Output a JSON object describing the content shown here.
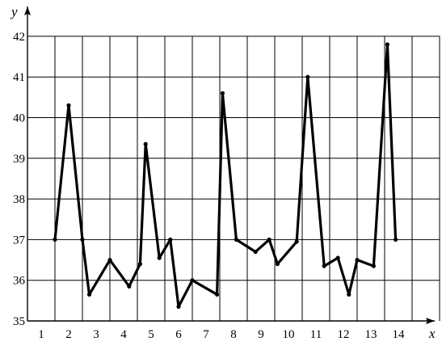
{
  "chart_data": {
    "type": "line",
    "title": "",
    "xlabel": "x",
    "ylabel": "y",
    "xlim": [
      0,
      15
    ],
    "ylim": [
      35,
      42
    ],
    "grid": true,
    "x_ticks": [
      "1",
      "2",
      "3",
      "4",
      "5",
      "6",
      "7",
      "8",
      "9",
      "10",
      "11",
      "12",
      "13",
      "14"
    ],
    "y_ticks": [
      "35",
      "36",
      "37",
      "38",
      "39",
      "40",
      "41",
      "42"
    ],
    "series": [
      {
        "color": "#000000",
        "x": [
          1,
          1.5,
          2,
          2.25,
          3,
          3.7,
          4.1,
          4.3,
          4.8,
          5.2,
          5.5,
          6,
          6.9,
          7.1,
          7.6,
          8.3,
          8.8,
          9.1,
          9.8,
          10.2,
          10.8,
          11.3,
          11.7,
          12,
          12.6,
          13.1,
          13.4
        ],
        "y": [
          37,
          40.3,
          37,
          35.65,
          36.5,
          35.85,
          36.4,
          39.35,
          36.55,
          37,
          35.35,
          36,
          35.65,
          40.6,
          37,
          36.7,
          37,
          36.4,
          36.95,
          41,
          36.35,
          36.55,
          35.65,
          36.5,
          36.35,
          41.8,
          37
        ]
      }
    ]
  }
}
